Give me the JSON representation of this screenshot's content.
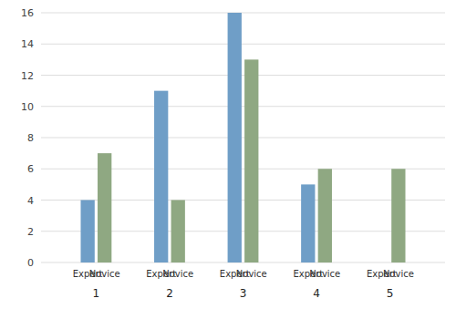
{
  "chart_data": {
    "type": "bar",
    "categories": [
      "1",
      "2",
      "3",
      "4",
      "5"
    ],
    "series": [
      {
        "name": "Expert",
        "color": "#6F9EC7",
        "values": [
          4,
          11,
          16,
          5,
          0
        ]
      },
      {
        "name": "Novice",
        "color": "#8FA882",
        "values": [
          7,
          4,
          13,
          6,
          6
        ]
      }
    ],
    "ylim": [
      0,
      16
    ],
    "yticks": [
      0,
      2,
      4,
      6,
      8,
      10,
      12,
      14,
      16
    ],
    "grid": true
  }
}
